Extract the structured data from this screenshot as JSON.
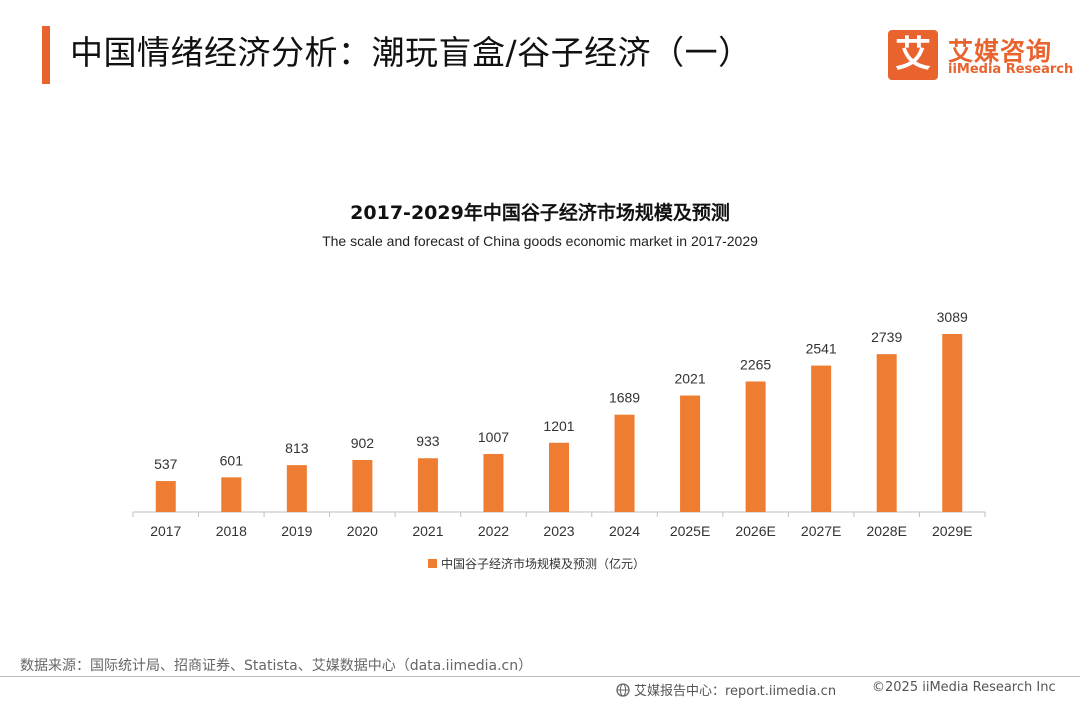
{
  "header": {
    "title": "中国情绪经济分析：潮玩盲盒/谷子经济（一）",
    "logo_mark": "艾",
    "logo_cn": "艾媒咨询",
    "logo_en": "iiMedia Research"
  },
  "colors": {
    "accent": "#e8632e",
    "bar": "#ee7d31"
  },
  "chart_data": {
    "type": "bar",
    "title": "2017-2029年中国谷子经济市场规模及预测",
    "subtitle": "The scale and forecast of China goods economic market in 2017-2029",
    "categories": [
      "2017",
      "2018",
      "2019",
      "2020",
      "2021",
      "2022",
      "2023",
      "2024",
      "2025E",
      "2026E",
      "2027E",
      "2028E",
      "2029E"
    ],
    "series": [
      {
        "name": "中国谷子经济市场规模及预测（亿元）",
        "values": [
          537,
          601,
          813,
          902,
          933,
          1007,
          1201,
          1689,
          2021,
          2265,
          2541,
          2739,
          3089
        ]
      }
    ],
    "ylim": [
      0,
      3500
    ],
    "grid": false,
    "legend": "bottom"
  },
  "footer": {
    "source": "数据来源：国际统计局、招商证券、Statista、艾媒数据中心（data.iimedia.cn）",
    "site": "艾媒报告中心：report.iimedia.cn",
    "copyright": "©2025  iiMedia Research  Inc"
  }
}
